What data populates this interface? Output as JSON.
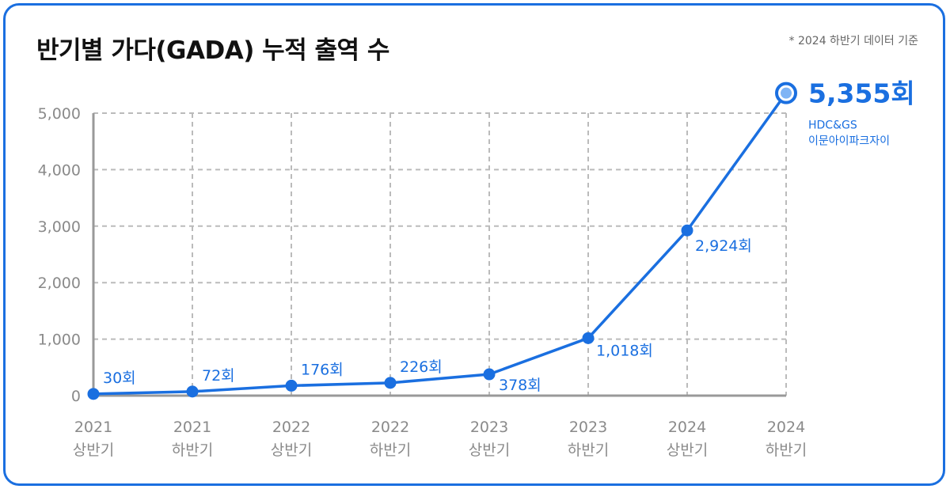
{
  "header": {
    "title": "반기별 가다(GADA) 누적 출역 수",
    "note": "* 2024 하반기 데이터 기준"
  },
  "colors": {
    "accent": "#1a6fe0",
    "grid": "#bbbbbb",
    "axis": "#999999",
    "tick": "#8a8a8a"
  },
  "chart_data": {
    "type": "line",
    "title": "반기별 가다(GADA) 누적 출역 수",
    "categories": [
      [
        "2021",
        "상반기"
      ],
      [
        "2021",
        "하반기"
      ],
      [
        "2022",
        "상반기"
      ],
      [
        "2022",
        "하반기"
      ],
      [
        "2023",
        "상반기"
      ],
      [
        "2023",
        "하반기"
      ],
      [
        "2024",
        "상반기"
      ],
      [
        "2024",
        "하반기"
      ]
    ],
    "values": [
      30,
      72,
      176,
      226,
      378,
      1018,
      2924,
      5355
    ],
    "data_labels": [
      "30회",
      "72회",
      "176회",
      "226회",
      "378회",
      "1,018회",
      "2,924회",
      "5,355회"
    ],
    "ylim": [
      0,
      5000
    ],
    "yticks": [
      0,
      1000,
      2000,
      3000,
      4000,
      5000
    ],
    "ytick_labels": [
      "0",
      "1,000",
      "2,000",
      "3,000",
      "4,000",
      "5,000"
    ],
    "grid": true,
    "highlight": {
      "index": 7,
      "label": "5,355회",
      "sub_line1": "HDC&GS",
      "sub_line2": "이문아이파크자이"
    }
  }
}
